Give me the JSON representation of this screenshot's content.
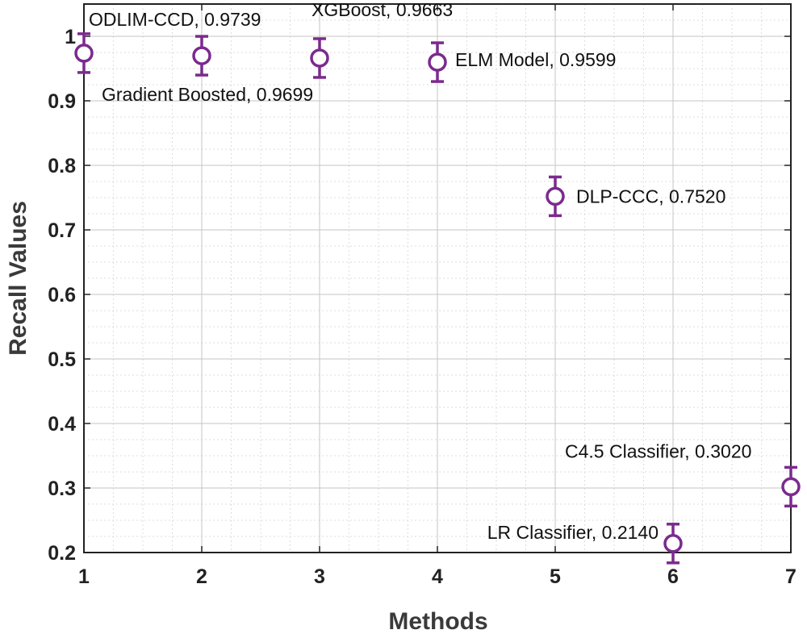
{
  "chart_data": {
    "type": "scatter",
    "title": "",
    "xlabel": "Methods",
    "ylabel": "Recall Values",
    "xlim": [
      1,
      7
    ],
    "ylim": [
      0.2,
      1.05
    ],
    "x_ticks": [
      1,
      2,
      3,
      4,
      5,
      6,
      7
    ],
    "x_tick_labels": [
      "1",
      "2",
      "3",
      "4",
      "5",
      "6",
      "7"
    ],
    "y_ticks": [
      0.2,
      0.3,
      0.4,
      0.5,
      0.6,
      0.7,
      0.8,
      0.9,
      1.0
    ],
    "y_tick_labels": [
      "0.2",
      "0.3",
      "0.4",
      "0.5",
      "0.6",
      "0.7",
      "0.8",
      "0.9",
      "1"
    ],
    "grid": true,
    "minor_grid": true,
    "marker_color": "#7b2a8e",
    "series": [
      {
        "marker": "circle",
        "error_bar": 0.03,
        "points": [
          {
            "x": 1,
            "y": 0.9739,
            "label": "ODLIM-CCD, 0.9739"
          },
          {
            "x": 2,
            "y": 0.9699,
            "label": "Gradient Boosted, 0.9699"
          },
          {
            "x": 3,
            "y": 0.9663,
            "label": "XGBoost, 0.9663"
          },
          {
            "x": 4,
            "y": 0.9599,
            "label": "ELM Model, 0.9599"
          },
          {
            "x": 5,
            "y": 0.752,
            "label": "DLP-CCC, 0.7520"
          },
          {
            "x": 6,
            "y": 0.214,
            "label": "LR Classifier, 0.2140"
          },
          {
            "x": 7,
            "y": 0.302,
            "label": "C4.5 Classifier, 0.3020"
          }
        ]
      }
    ]
  }
}
